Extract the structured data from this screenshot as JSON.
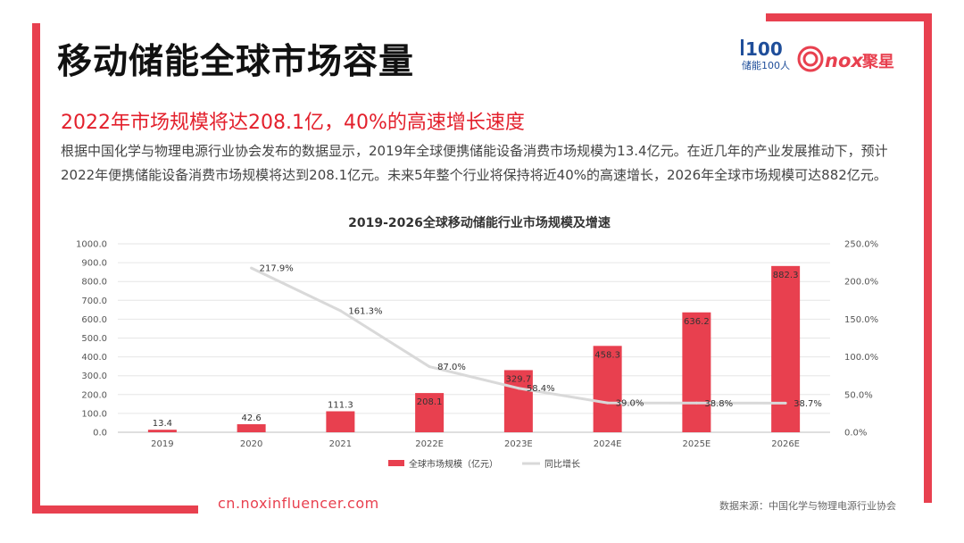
{
  "page": {
    "title": "移动储能全球市场容量",
    "subtitle": "2022年市场规模将达208.1亿，40%的高速增长速度",
    "description": "根据中国化学与物理电源行业协会发布的数据显示，2019年全球便携储能设备消费市场规模为13.4亿元。在近几年的产业发展推动下，预计2022年便携储能设备消费市场规模将达到208.1亿元。未来5年整个行业将保持将近40%的高速增长，2026年全球市场规模可达882亿元。",
    "footer_url": "cn.noxinfluencer.com",
    "source": "数据来源：中国化学与物理电源行业协会"
  },
  "logos": {
    "logo1_mark": "100",
    "logo1_text": "储能100人",
    "logo2_text": "nox",
    "logo2_cn": "聚星"
  },
  "colors": {
    "accent": "#e8404f",
    "bar": "#e8404f",
    "line": "#d9d9d9",
    "grid": "#e6e6e6"
  },
  "chart_data": {
    "type": "bar",
    "title": "2019-2026全球移动储能行业市场规模及增速",
    "categories": [
      "2019",
      "2020",
      "2021",
      "2022E",
      "2023E",
      "2024E",
      "2025E",
      "2026E"
    ],
    "left_ticks": [
      "0.0",
      "100.0",
      "200.0",
      "300.0",
      "400.0",
      "500.0",
      "600.0",
      "700.0",
      "800.0",
      "900.0",
      "1000.0"
    ],
    "right_ticks": [
      "0.0%",
      "50.0%",
      "100.0%",
      "150.0%",
      "200.0%",
      "250.0%"
    ],
    "ylim": [
      0,
      1000
    ],
    "y2lim": [
      0,
      250
    ],
    "series": [
      {
        "name": "全球市场规模（亿元）",
        "type": "bar",
        "values": [
          13.4,
          42.6,
          111.3,
          208.1,
          329.7,
          458.3,
          636.2,
          882.3
        ],
        "labels": [
          "13.4",
          "42.6",
          "111.3",
          "208.1",
          "329.7",
          "458.3",
          "636.2",
          "882.3"
        ]
      },
      {
        "name": "同比增长",
        "type": "line",
        "axis": "right",
        "values": [
          null,
          217.9,
          161.3,
          87.0,
          58.4,
          39.0,
          38.8,
          38.7
        ],
        "labels": [
          "",
          "217.9%",
          "161.3%",
          "87.0%",
          "58.4%",
          "39.0%",
          "38.8%",
          "38.7%"
        ]
      }
    ],
    "grid": true,
    "legend_position": "bottom"
  }
}
